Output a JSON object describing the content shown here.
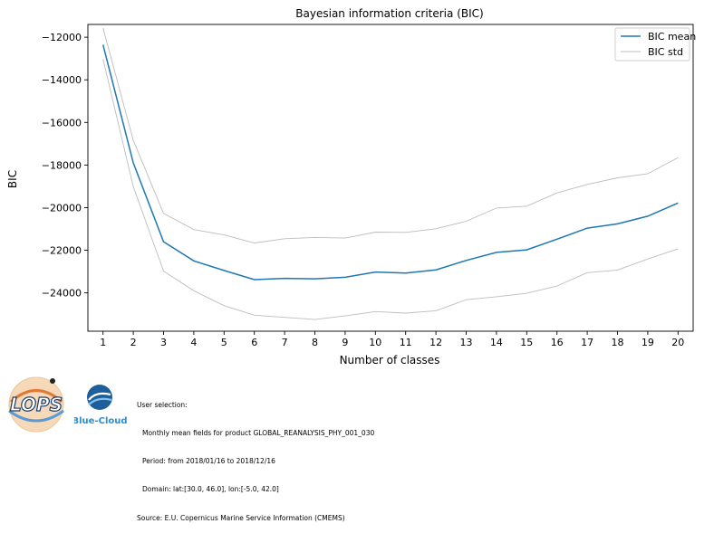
{
  "chart_data": {
    "type": "line",
    "title": "Bayesian information criteria (BIC)",
    "xlabel": "Number of classes",
    "ylabel": "BIC",
    "categories": [
      1,
      2,
      3,
      4,
      5,
      6,
      7,
      8,
      9,
      10,
      11,
      12,
      13,
      14,
      15,
      16,
      17,
      18,
      19,
      20
    ],
    "xlim": [
      0.5,
      20.5
    ],
    "ylim": [
      -25800,
      -11400
    ],
    "yticks": [
      -24000,
      -22000,
      -20000,
      -18000,
      -16000,
      -14000,
      -12000
    ],
    "yticklabels": [
      "−24000",
      "−22000",
      "−20000",
      "−18000",
      "−16000",
      "−14000",
      "−12000"
    ],
    "grid": false,
    "legend_position": "top-right",
    "series": [
      {
        "name": "BIC mean",
        "color": "#1f77b4",
        "values": [
          -12350,
          -17900,
          -21600,
          -22500,
          -22950,
          -23380,
          -23320,
          -23340,
          -23270,
          -23020,
          -23070,
          -22920,
          -22480,
          -22100,
          -21980,
          -21480,
          -20960,
          -20760,
          -20400,
          -19780
        ]
      },
      {
        "name": "BIC std",
        "color": "#bdbdbd",
        "upper": [
          -11570,
          -16840,
          -20270,
          -21030,
          -21280,
          -21660,
          -21460,
          -21400,
          -21430,
          -21150,
          -21160,
          -20990,
          -20640,
          -20020,
          -19930,
          -19310,
          -18910,
          -18600,
          -18410,
          -17650
        ],
        "lower": [
          -13030,
          -19010,
          -22980,
          -23900,
          -24600,
          -25050,
          -25150,
          -25250,
          -25080,
          -24880,
          -24950,
          -24840,
          -24320,
          -24180,
          -24020,
          -23680,
          -23050,
          -22930,
          -22410,
          -21930
        ]
      }
    ]
  },
  "footer": {
    "line1": "User selection:",
    "line2": "Monthly mean fields for product GLOBAL_REANALYSIS_PHY_001_030",
    "line3": "Period: from 2018/01/16 to 2018/12/16",
    "line4": "Domain: lat:[30.0, 46.0], lon:[-5.0, 42.0]",
    "line5": "Source: E.U. Copernicus Marine Service Information (CMEMS)"
  },
  "logos": {
    "lops": "LOPS",
    "bluecloud": "Blue-Cloud"
  }
}
